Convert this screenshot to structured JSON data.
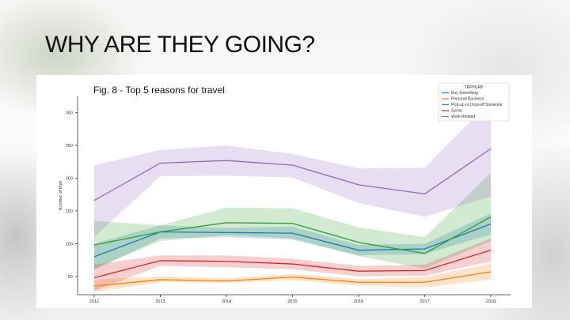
{
  "slide": {
    "title": "WHY ARE THEY GOING?",
    "caption": "Fig. 8 - Top 5 reasons for travel"
  },
  "chart_data": {
    "type": "line",
    "title": "",
    "xlabel": "",
    "ylabel": "Number of trips",
    "x": [
      2012,
      2013,
      2014,
      2015,
      2016,
      2017,
      2018
    ],
    "xticks": [
      "2012",
      "2013",
      "2014",
      "2015",
      "2016",
      "2017",
      "2018"
    ],
    "yticks": [
      50,
      100,
      150,
      200,
      250,
      300
    ],
    "ylim": [
      22,
      325
    ],
    "grid": false,
    "legend": {
      "title": "TRPPURP",
      "placement": "top-right"
    },
    "series": [
      {
        "name": "Buy Something",
        "color": "#1f77b4",
        "values": [
          80,
          118,
          117,
          116,
          90,
          92,
          130
        ],
        "lower": [
          60,
          108,
          110,
          106,
          82,
          84,
          114
        ],
        "upper": [
          100,
          128,
          124,
          126,
          98,
          100,
          146
        ]
      },
      {
        "name": "Personal Business",
        "color": "#ff7f0e",
        "values": [
          35,
          45,
          43,
          49,
          41,
          41,
          57
        ],
        "lower": [
          26,
          41,
          40,
          44,
          36,
          33,
          45
        ],
        "upper": [
          45,
          50,
          47,
          54,
          46,
          49,
          70
        ]
      },
      {
        "name": "Pick-up or Drop-off Someone",
        "color": "#2ca02c",
        "values": [
          98,
          118,
          132,
          131,
          102,
          85,
          141
        ],
        "lower": [
          62,
          104,
          113,
          108,
          81,
          62,
          104
        ],
        "upper": [
          135,
          128,
          155,
          154,
          125,
          110,
          208
        ]
      },
      {
        "name": "Social",
        "color": "#d62728",
        "values": [
          48,
          74,
          73,
          69,
          58,
          59,
          90
        ],
        "lower": [
          28,
          66,
          64,
          61,
          50,
          51,
          73
        ],
        "upper": [
          68,
          82,
          82,
          77,
          66,
          68,
          108
        ]
      },
      {
        "name": "Work Related",
        "color": "#9467bd",
        "values": [
          166,
          223,
          227,
          220,
          190,
          176,
          245
        ],
        "lower": [
          110,
          203,
          204,
          201,
          162,
          141,
          172
        ],
        "upper": [
          220,
          243,
          250,
          237,
          215,
          216,
          318
        ]
      }
    ]
  }
}
